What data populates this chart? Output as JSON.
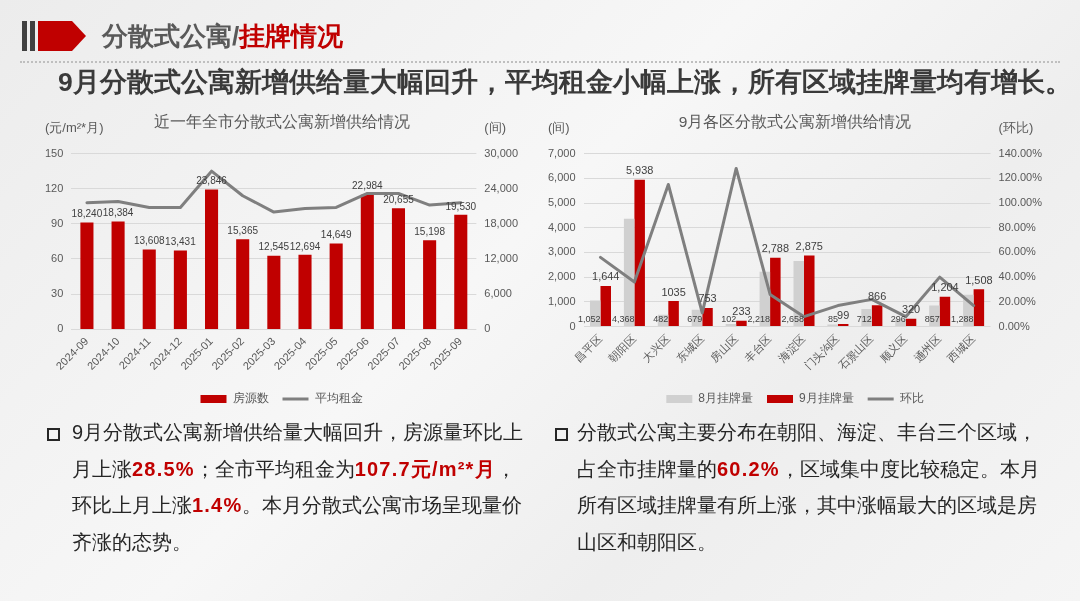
{
  "chart_data": [
    {
      "type": "other",
      "title": "分散式公寓/挂牌情况",
      "subtitle": "9月分散式公寓新增供给量大幅回升，平均租金小幅上涨，所有区域挂牌量均有增长。"
    },
    {
      "type": "bar",
      "title": "近一年全市分散式公寓新增供给情况",
      "ylabel": "(元/m²*月)",
      "y2label": "(间)",
      "categories": [
        "2024-09",
        "2024-10",
        "2024-11",
        "2024-12",
        "2025-01",
        "2025-02",
        "2025-03",
        "2025-04",
        "2025-05",
        "2025-06",
        "2025-07",
        "2025-08",
        "2025-09"
      ],
      "series": [
        {
          "name": "房源数",
          "type": "bar",
          "axis": "y2",
          "color": "#c00000",
          "values": [
            18240,
            18384,
            13608,
            13431,
            23846,
            15365,
            12545,
            12694,
            14649,
            22984,
            20655,
            15198,
            19530
          ],
          "value_labels": [
            "18,240",
            "18,384",
            "13,608",
            "13,431",
            "23,846",
            "15,365",
            "12,545",
            "12,694",
            "14,649",
            "22,984",
            "20,655",
            "15,198",
            "19,530"
          ]
        },
        {
          "name": "平均租金",
          "type": "line",
          "color": "#7f7f7f",
          "values": [
            108,
            109,
            104,
            104,
            135,
            114,
            100,
            103,
            104,
            116,
            116,
            106,
            108
          ]
        }
      ],
      "ylim": [
        0,
        150
      ],
      "yticks": [
        0,
        30,
        60,
        90,
        120,
        150
      ],
      "y2lim": [
        0,
        30000
      ],
      "y2ticks": [
        0,
        {
          "value": 6000,
          "label": "6,000"
        },
        {
          "value": 12000,
          "label": "12,000"
        },
        {
          "value": 18000,
          "label": "18,000"
        },
        {
          "value": 24000,
          "label": "24,000"
        },
        {
          "value": 30000,
          "label": "30,000"
        }
      ],
      "grid": "y",
      "legend": "bottom",
      "marker": "none",
      "annotations": [
        "9月分散式公寓新增供给量大幅回升，房源量环比上月上涨28.5%；全市平均租金为107.7元/m²*月，环比上月上涨1.4%。本月分散式公寓市场呈现量价齐涨的态势。"
      ]
    },
    {
      "type": "bar",
      "title": "9月各区分散式公寓新增供给情况",
      "ylabel": "(间)",
      "y2label": "(环比)",
      "categories": [
        "昌平区",
        "朝阳区",
        "大兴区",
        "东城区",
        "房山区",
        "丰台区",
        "海淀区",
        "门头沟区",
        "石景山区",
        "顺义区",
        "通州区",
        "西城区"
      ],
      "series": [
        {
          "name": "8月挂牌量",
          "type": "bar",
          "color": "#d0d0d0",
          "values": [
            1052,
            4368,
            482,
            679,
            102,
            2218,
            2658,
            85,
            712,
            296,
            857,
            1288
          ],
          "value_labels": [
            "1,052",
            "4,368",
            "482",
            "679",
            "102",
            "2,218",
            "2,658",
            "85",
            "712",
            "296",
            "857",
            "1,288"
          ]
        },
        {
          "name": "9月挂牌量",
          "type": "bar",
          "color": "#c00000",
          "values": [
            1644,
            5938,
            1035,
            753,
            233,
            2788,
            2875,
            99,
            866,
            320,
            1204,
            1508
          ],
          "value_labels": [
            "1,644",
            "5,938",
            "1035",
            "753",
            "233",
            "2,788",
            "2,875",
            "99",
            "866",
            "320",
            "1,204",
            "1,508"
          ]
        },
        {
          "name": "环比",
          "type": "line",
          "axis": "y2",
          "color": "#7f7f7f",
          "values": [
            56,
            36,
            115,
            11,
            128,
            26,
            8,
            17,
            22,
            8,
            40,
            17
          ]
        }
      ],
      "ylim": [
        0,
        7000
      ],
      "yticks": [
        0,
        {
          "value": 1000,
          "label": "1,000"
        },
        {
          "value": 2000,
          "label": "2,000"
        },
        {
          "value": 3000,
          "label": "3,000"
        },
        {
          "value": 4000,
          "label": "4,000"
        },
        {
          "value": 5000,
          "label": "5,000"
        },
        {
          "value": 6000,
          "label": "6,000"
        },
        {
          "value": 7000,
          "label": "7,000"
        }
      ],
      "y2lim": [
        0,
        140
      ],
      "y2ticks": [
        {
          "value": 0,
          "label": "0.00%"
        },
        {
          "value": 20,
          "label": "20.00%"
        },
        {
          "value": 40,
          "label": "40.00%"
        },
        {
          "value": 60,
          "label": "60.00%"
        },
        {
          "value": 80,
          "label": "80.00%"
        },
        {
          "value": 100,
          "label": "100.00%"
        },
        {
          "value": 120,
          "label": "120.00%"
        },
        {
          "value": 140,
          "label": "140.00%"
        }
      ],
      "grid": "y",
      "legend": "bottom",
      "marker": "none",
      "annotations": [
        "分散式公寓主要分布在朝阳、海淀、丰台三个区域，占全市挂牌量的60.2%，区域集中度比较稳定。本月所有区域挂牌量有所上涨，其中涨幅最大的区域是房山区和朝阳区。"
      ]
    }
  ]
}
